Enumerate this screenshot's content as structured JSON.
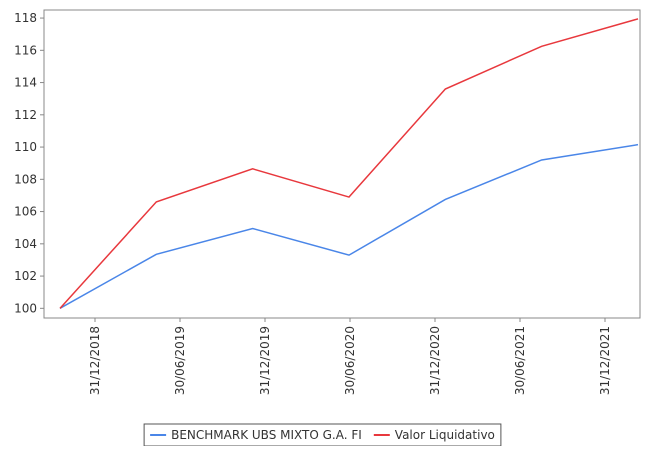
{
  "chart_data": {
    "type": "line",
    "categories": [
      "31/12/2018",
      "30/06/2019",
      "31/12/2019",
      "30/06/2020",
      "31/12/2020",
      "30/06/2021",
      "31/12/2021"
    ],
    "series": [
      {
        "name": "BENCHMARK UBS MIXTO G.A. FI",
        "color": "#4a86e8",
        "values": [
          100,
          103.35,
          104.95,
          103.3,
          106.75,
          109.2,
          110.15
        ]
      },
      {
        "name": "Valor Liquidativo",
        "color": "#e8383d",
        "values": [
          100,
          106.6,
          108.65,
          106.9,
          113.6,
          116.25,
          117.95
        ]
      }
    ],
    "ylim": [
      99.4,
      118.5
    ],
    "yticks": [
      100,
      102,
      104,
      106,
      108,
      110,
      112,
      114,
      116,
      118
    ],
    "legend": "bottom"
  }
}
